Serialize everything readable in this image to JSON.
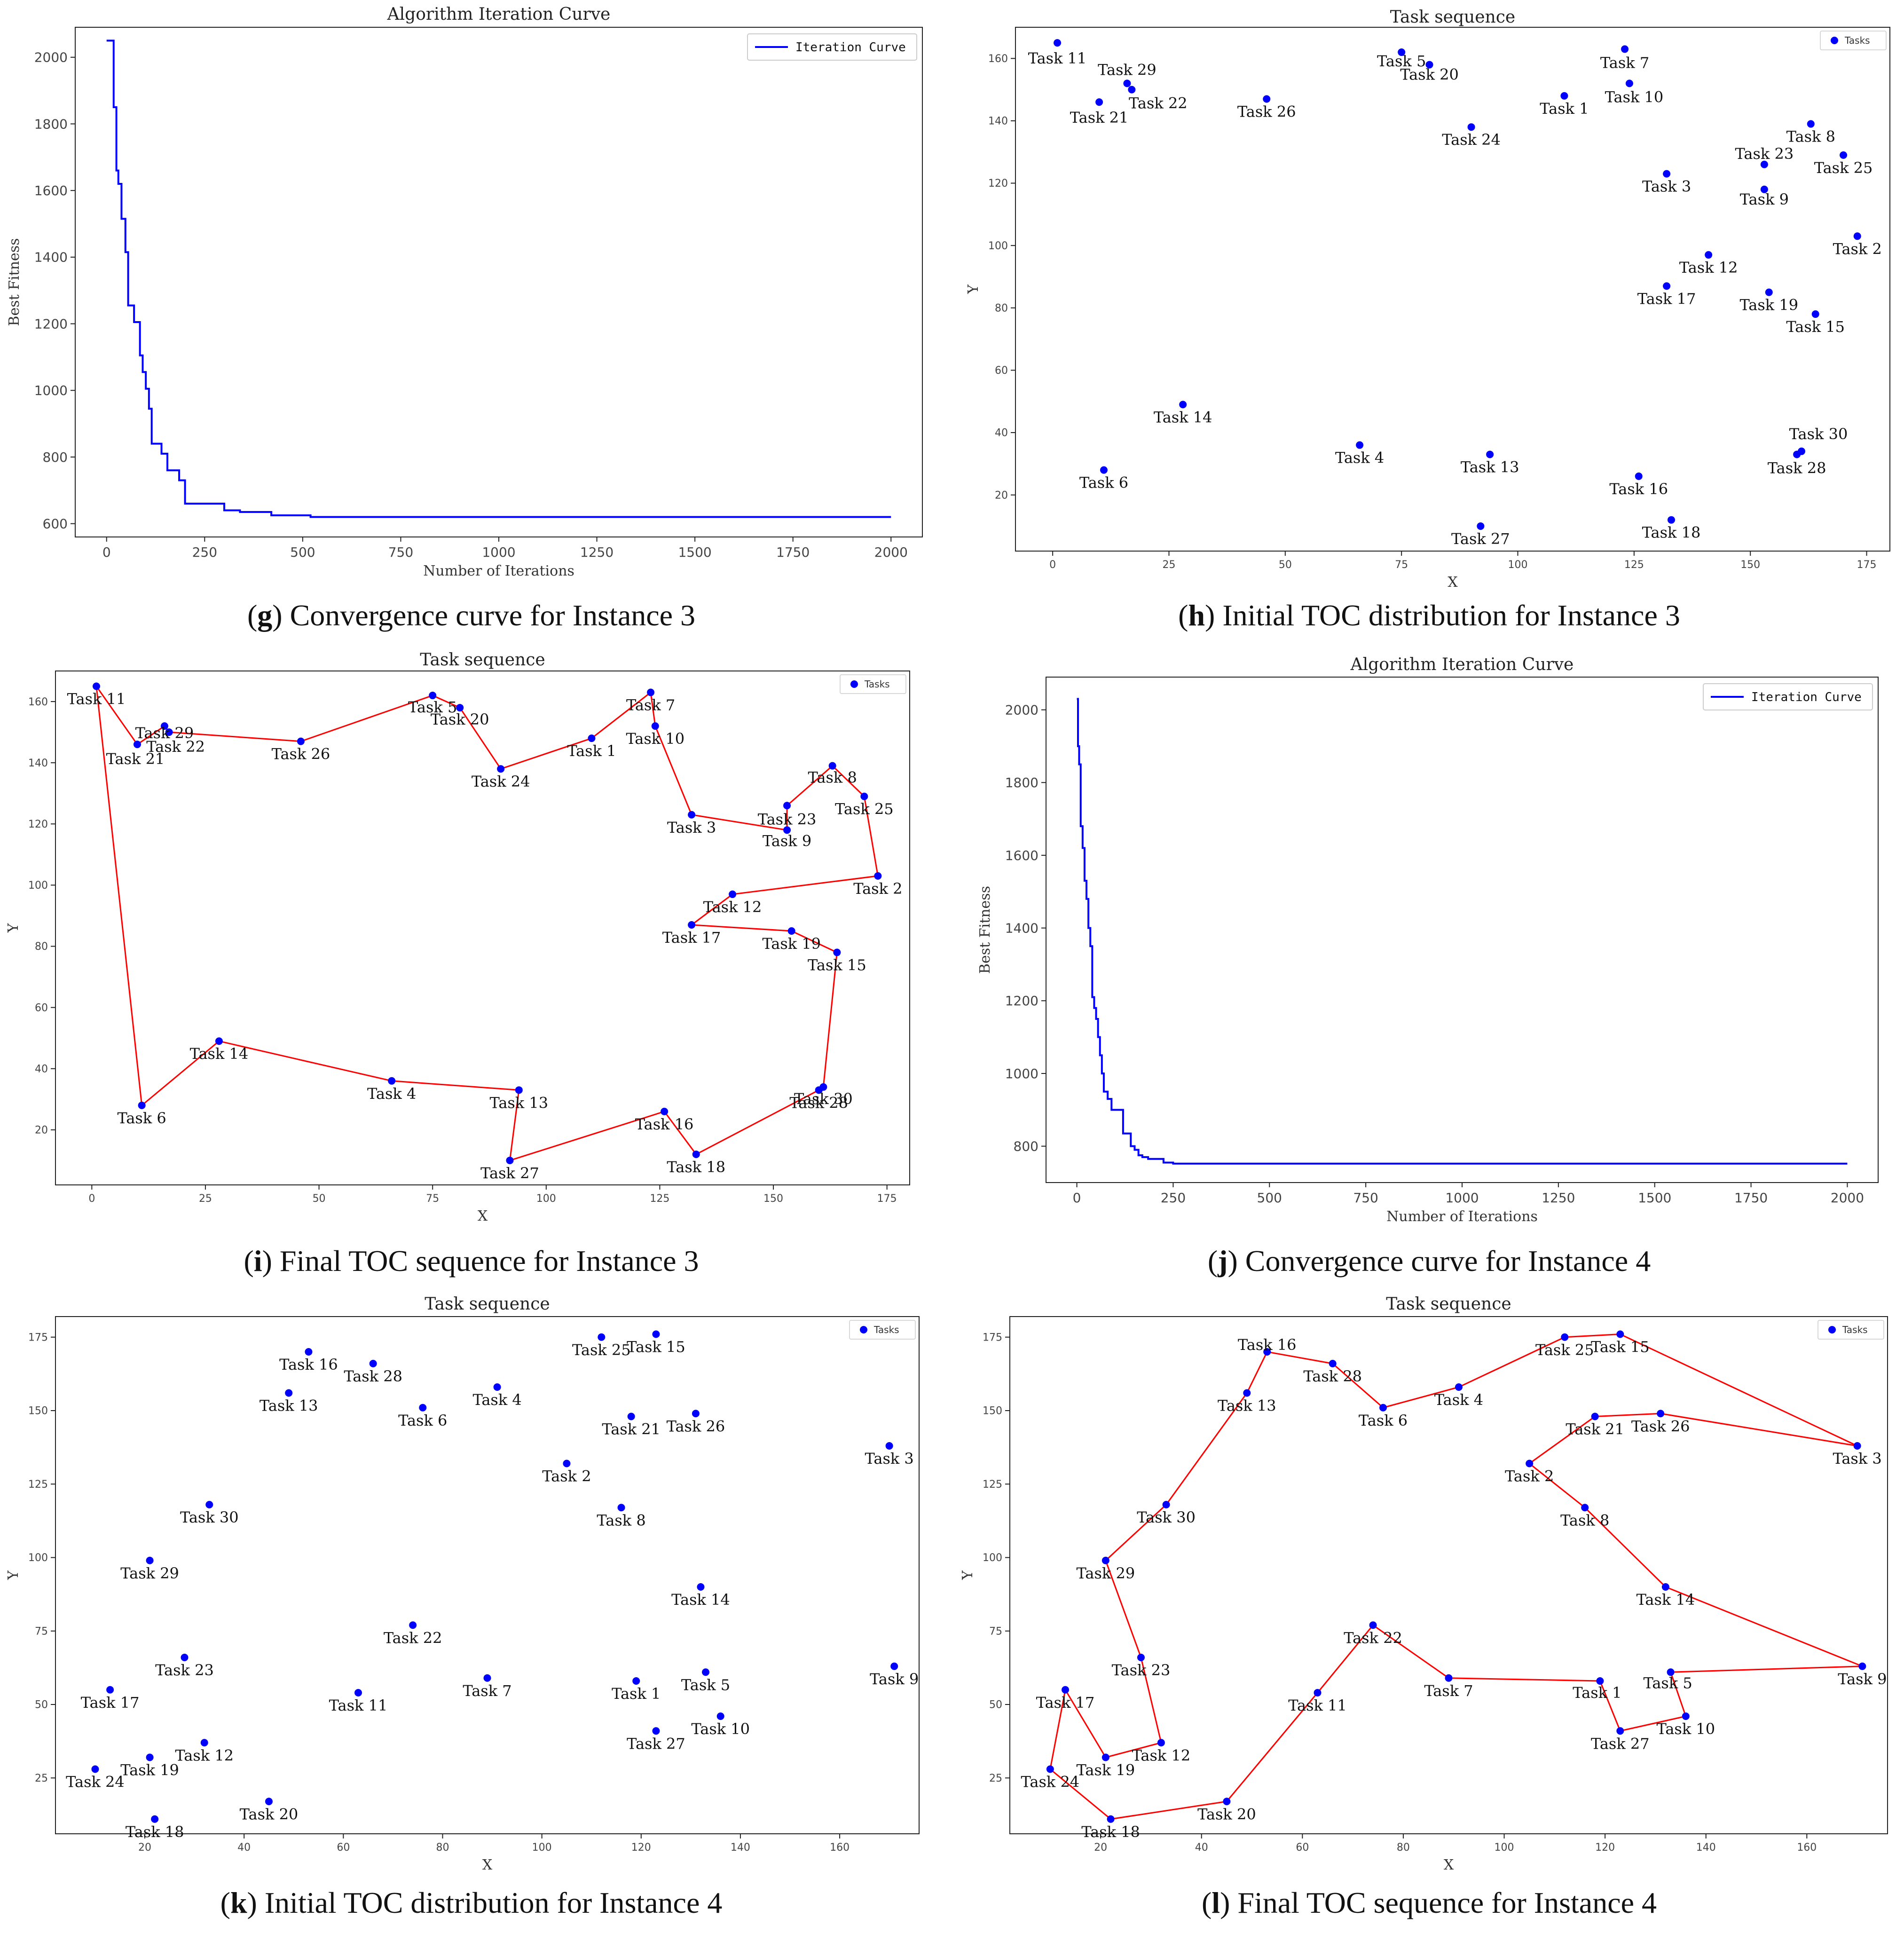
{
  "chart_data": [
    {
      "id": "g",
      "type": "line",
      "title": "Algorithm Iteration Curve",
      "xlabel": "Number of Iterations",
      "ylabel": "Best Fitness",
      "xlim": [
        -80,
        2080
      ],
      "ylim": [
        560,
        2090
      ],
      "xticks": [
        0,
        250,
        500,
        750,
        1000,
        1250,
        1500,
        1750,
        2000
      ],
      "yticks": [
        600,
        800,
        1000,
        1200,
        1400,
        1600,
        1800,
        2000
      ],
      "legend": "Iteration Curve",
      "legend_position": "top-right",
      "color": "#0000ff",
      "x": [
        0,
        15,
        18,
        22,
        25,
        30,
        38,
        42,
        48,
        55,
        60,
        70,
        78,
        85,
        92,
        100,
        108,
        115,
        125,
        140,
        155,
        170,
        185,
        200,
        300,
        340,
        420,
        520,
        2000
      ],
      "y": [
        2050,
        2050,
        1850,
        1850,
        1660,
        1620,
        1515,
        1515,
        1415,
        1255,
        1255,
        1205,
        1205,
        1105,
        1055,
        1005,
        945,
        840,
        840,
        810,
        760,
        760,
        730,
        660,
        640,
        635,
        625,
        620,
        620
      ]
    },
    {
      "id": "h",
      "type": "scatter",
      "title": "Task sequence",
      "xlabel": "X",
      "ylabel": "Y",
      "xlim": [
        -8,
        180
      ],
      "ylim": [
        2,
        170
      ],
      "xticks": [
        0,
        25,
        50,
        75,
        100,
        125,
        150,
        175
      ],
      "yticks": [
        20,
        40,
        60,
        80,
        100,
        120,
        140,
        160
      ],
      "legend": "Tasks",
      "legend_position": "top-right",
      "color": "#0000ff",
      "points": [
        {
          "label": "Task 1",
          "x": 110,
          "y": 148
        },
        {
          "label": "Task 2",
          "x": 173,
          "y": 103
        },
        {
          "label": "Task 3",
          "x": 132,
          "y": 123
        },
        {
          "label": "Task 4",
          "x": 66,
          "y": 36
        },
        {
          "label": "Task 5",
          "x": 75,
          "y": 162
        },
        {
          "label": "Task 6",
          "x": 11,
          "y": 28
        },
        {
          "label": "Task 7",
          "x": 123,
          "y": 163
        },
        {
          "label": "Task 8",
          "x": 163,
          "y": 139
        },
        {
          "label": "Task 9",
          "x": 153,
          "y": 118
        },
        {
          "label": "Task 10",
          "x": 124,
          "y": 152
        },
        {
          "label": "Task 11",
          "x": 1,
          "y": 165
        },
        {
          "label": "Task 12",
          "x": 141,
          "y": 97
        },
        {
          "label": "Task 13",
          "x": 94,
          "y": 33
        },
        {
          "label": "Task 14",
          "x": 28,
          "y": 49
        },
        {
          "label": "Task 15",
          "x": 164,
          "y": 78
        },
        {
          "label": "Task 16",
          "x": 126,
          "y": 26
        },
        {
          "label": "Task 17",
          "x": 132,
          "y": 87
        },
        {
          "label": "Task 18",
          "x": 133,
          "y": 12
        },
        {
          "label": "Task 19",
          "x": 154,
          "y": 85
        },
        {
          "label": "Task 20",
          "x": 81,
          "y": 158
        },
        {
          "label": "Task 21",
          "x": 10,
          "y": 146
        },
        {
          "label": "Task 22",
          "x": 17,
          "y": 150
        },
        {
          "label": "Task 23",
          "x": 153,
          "y": 126
        },
        {
          "label": "Task 24",
          "x": 90,
          "y": 138
        },
        {
          "label": "Task 25",
          "x": 170,
          "y": 129
        },
        {
          "label": "Task 26",
          "x": 46,
          "y": 147
        },
        {
          "label": "Task 27",
          "x": 92,
          "y": 10
        },
        {
          "label": "Task 28",
          "x": 160,
          "y": 33
        },
        {
          "label": "Task 29",
          "x": 16,
          "y": 152
        },
        {
          "label": "Task 30",
          "x": 161,
          "y": 34
        }
      ]
    },
    {
      "id": "i",
      "type": "line",
      "title": "Task sequence",
      "xlabel": "X",
      "ylabel": "Y",
      "xlim": [
        -8,
        180
      ],
      "ylim": [
        2,
        170
      ],
      "xticks": [
        0,
        25,
        50,
        75,
        100,
        125,
        150,
        175
      ],
      "yticks": [
        20,
        40,
        60,
        80,
        100,
        120,
        140,
        160
      ],
      "legend": "Tasks",
      "legend_position": "top-right",
      "color": "#0000ff",
      "route_color": "#ff0000",
      "points": [
        {
          "label": "Task 1",
          "x": 110,
          "y": 148
        },
        {
          "label": "Task 2",
          "x": 173,
          "y": 103
        },
        {
          "label": "Task 3",
          "x": 132,
          "y": 123
        },
        {
          "label": "Task 4",
          "x": 66,
          "y": 36
        },
        {
          "label": "Task 5",
          "x": 75,
          "y": 162
        },
        {
          "label": "Task 6",
          "x": 11,
          "y": 28
        },
        {
          "label": "Task 7",
          "x": 123,
          "y": 163
        },
        {
          "label": "Task 8",
          "x": 163,
          "y": 139
        },
        {
          "label": "Task 9",
          "x": 153,
          "y": 118
        },
        {
          "label": "Task 10",
          "x": 124,
          "y": 152
        },
        {
          "label": "Task 11",
          "x": 1,
          "y": 165
        },
        {
          "label": "Task 12",
          "x": 141,
          "y": 97
        },
        {
          "label": "Task 13",
          "x": 94,
          "y": 33
        },
        {
          "label": "Task 14",
          "x": 28,
          "y": 49
        },
        {
          "label": "Task 15",
          "x": 164,
          "y": 78
        },
        {
          "label": "Task 16",
          "x": 126,
          "y": 26
        },
        {
          "label": "Task 17",
          "x": 132,
          "y": 87
        },
        {
          "label": "Task 18",
          "x": 133,
          "y": 12
        },
        {
          "label": "Task 19",
          "x": 154,
          "y": 85
        },
        {
          "label": "Task 20",
          "x": 81,
          "y": 158
        },
        {
          "label": "Task 21",
          "x": 10,
          "y": 146
        },
        {
          "label": "Task 22",
          "x": 17,
          "y": 150
        },
        {
          "label": "Task 23",
          "x": 153,
          "y": 126
        },
        {
          "label": "Task 24",
          "x": 90,
          "y": 138
        },
        {
          "label": "Task 25",
          "x": 170,
          "y": 129
        },
        {
          "label": "Task 26",
          "x": 46,
          "y": 147
        },
        {
          "label": "Task 27",
          "x": 92,
          "y": 10
        },
        {
          "label": "Task 28",
          "x": 160,
          "y": 33
        },
        {
          "label": "Task 29",
          "x": 16,
          "y": 152
        },
        {
          "label": "Task 30",
          "x": 161,
          "y": 34
        }
      ],
      "route": [
        "Task 11",
        "Task 21",
        "Task 29",
        "Task 22",
        "Task 26",
        "Task 5",
        "Task 20",
        "Task 24",
        "Task 1",
        "Task 7",
        "Task 10",
        "Task 3",
        "Task 9",
        "Task 23",
        "Task 8",
        "Task 25",
        "Task 2",
        "Task 12",
        "Task 17",
        "Task 19",
        "Task 15",
        "Task 30",
        "Task 28",
        "Task 18",
        "Task 16",
        "Task 27",
        "Task 13",
        "Task 4",
        "Task 14",
        "Task 6",
        "Task 11"
      ]
    },
    {
      "id": "j",
      "type": "line",
      "title": "Algorithm Iteration Curve",
      "xlabel": "Number of Iterations",
      "ylabel": "Best Fitness",
      "xlim": [
        -80,
        2080
      ],
      "ylim": [
        700,
        2090
      ],
      "xticks": [
        0,
        250,
        500,
        750,
        1000,
        1250,
        1500,
        1750,
        2000
      ],
      "yticks": [
        800,
        1000,
        1200,
        1400,
        1600,
        1800,
        2000
      ],
      "legend": "Iteration Curve",
      "legend_position": "top-right",
      "color": "#0000ff",
      "x": [
        0,
        3,
        6,
        10,
        15,
        20,
        25,
        30,
        35,
        40,
        45,
        50,
        55,
        60,
        65,
        70,
        80,
        90,
        100,
        120,
        140,
        150,
        160,
        170,
        185,
        200,
        225,
        250,
        2000
      ],
      "y": [
        2030,
        1900,
        1850,
        1680,
        1620,
        1530,
        1480,
        1400,
        1350,
        1210,
        1180,
        1150,
        1100,
        1050,
        1000,
        950,
        930,
        900,
        900,
        835,
        800,
        790,
        775,
        770,
        765,
        765,
        755,
        752,
        752
      ]
    },
    {
      "id": "k",
      "type": "scatter",
      "title": "Task sequence",
      "xlabel": "X",
      "ylabel": "Y",
      "xlim": [
        2,
        176
      ],
      "ylim": [
        6,
        182
      ],
      "xticks": [
        20,
        40,
        60,
        80,
        100,
        120,
        140,
        160
      ],
      "yticks": [
        25,
        50,
        75,
        100,
        125,
        150,
        175
      ],
      "legend": "Tasks",
      "legend_position": "top-right",
      "color": "#0000ff",
      "points": [
        {
          "label": "Task 1",
          "x": 119,
          "y": 58
        },
        {
          "label": "Task 2",
          "x": 105,
          "y": 132
        },
        {
          "label": "Task 3",
          "x": 170,
          "y": 138
        },
        {
          "label": "Task 4",
          "x": 91,
          "y": 158
        },
        {
          "label": "Task 5",
          "x": 133,
          "y": 61
        },
        {
          "label": "Task 6",
          "x": 76,
          "y": 151
        },
        {
          "label": "Task 7",
          "x": 89,
          "y": 59
        },
        {
          "label": "Task 8",
          "x": 116,
          "y": 117
        },
        {
          "label": "Task 9",
          "x": 171,
          "y": 63
        },
        {
          "label": "Task 10",
          "x": 136,
          "y": 46
        },
        {
          "label": "Task 11",
          "x": 63,
          "y": 54
        },
        {
          "label": "Task 12",
          "x": 32,
          "y": 37
        },
        {
          "label": "Task 13",
          "x": 49,
          "y": 156
        },
        {
          "label": "Task 14",
          "x": 132,
          "y": 90
        },
        {
          "label": "Task 15",
          "x": 123,
          "y": 176
        },
        {
          "label": "Task 16",
          "x": 53,
          "y": 170
        },
        {
          "label": "Task 17",
          "x": 13,
          "y": 55
        },
        {
          "label": "Task 18",
          "x": 22,
          "y": 11
        },
        {
          "label": "Task 19",
          "x": 21,
          "y": 32
        },
        {
          "label": "Task 20",
          "x": 45,
          "y": 17
        },
        {
          "label": "Task 21",
          "x": 118,
          "y": 148
        },
        {
          "label": "Task 22",
          "x": 74,
          "y": 77
        },
        {
          "label": "Task 23",
          "x": 28,
          "y": 66
        },
        {
          "label": "Task 24",
          "x": 10,
          "y": 28
        },
        {
          "label": "Task 25",
          "x": 112,
          "y": 175
        },
        {
          "label": "Task 26",
          "x": 131,
          "y": 149
        },
        {
          "label": "Task 27",
          "x": 123,
          "y": 41
        },
        {
          "label": "Task 28",
          "x": 66,
          "y": 166
        },
        {
          "label": "Task 29",
          "x": 21,
          "y": 99
        },
        {
          "label": "Task 30",
          "x": 33,
          "y": 118
        }
      ]
    },
    {
      "id": "l",
      "type": "line",
      "title": "Task sequence",
      "xlabel": "X",
      "ylabel": "Y",
      "xlim": [
        2,
        176
      ],
      "ylim": [
        6,
        182
      ],
      "xticks": [
        20,
        40,
        60,
        80,
        100,
        120,
        140,
        160
      ],
      "yticks": [
        25,
        50,
        75,
        100,
        125,
        150,
        175
      ],
      "legend": "Tasks",
      "legend_position": "top-right",
      "color": "#0000ff",
      "route_color": "#ff0000",
      "points": [
        {
          "label": "Task 1",
          "x": 119,
          "y": 58
        },
        {
          "label": "Task 2",
          "x": 105,
          "y": 132
        },
        {
          "label": "Task 3",
          "x": 170,
          "y": 138
        },
        {
          "label": "Task 4",
          "x": 91,
          "y": 158
        },
        {
          "label": "Task 5",
          "x": 133,
          "y": 61
        },
        {
          "label": "Task 6",
          "x": 76,
          "y": 151
        },
        {
          "label": "Task 7",
          "x": 89,
          "y": 59
        },
        {
          "label": "Task 8",
          "x": 116,
          "y": 117
        },
        {
          "label": "Task 9",
          "x": 171,
          "y": 63
        },
        {
          "label": "Task 10",
          "x": 136,
          "y": 46
        },
        {
          "label": "Task 11",
          "x": 63,
          "y": 54
        },
        {
          "label": "Task 12",
          "x": 32,
          "y": 37
        },
        {
          "label": "Task 13",
          "x": 49,
          "y": 156
        },
        {
          "label": "Task 14",
          "x": 132,
          "y": 90
        },
        {
          "label": "Task 15",
          "x": 123,
          "y": 176
        },
        {
          "label": "Task 16",
          "x": 53,
          "y": 170
        },
        {
          "label": "Task 17",
          "x": 13,
          "y": 55
        },
        {
          "label": "Task 18",
          "x": 22,
          "y": 11
        },
        {
          "label": "Task 19",
          "x": 21,
          "y": 32
        },
        {
          "label": "Task 20",
          "x": 45,
          "y": 17
        },
        {
          "label": "Task 21",
          "x": 118,
          "y": 148
        },
        {
          "label": "Task 22",
          "x": 74,
          "y": 77
        },
        {
          "label": "Task 23",
          "x": 28,
          "y": 66
        },
        {
          "label": "Task 24",
          "x": 10,
          "y": 28
        },
        {
          "label": "Task 25",
          "x": 112,
          "y": 175
        },
        {
          "label": "Task 26",
          "x": 131,
          "y": 149
        },
        {
          "label": "Task 27",
          "x": 123,
          "y": 41
        },
        {
          "label": "Task 28",
          "x": 66,
          "y": 166
        },
        {
          "label": "Task 29",
          "x": 21,
          "y": 99
        },
        {
          "label": "Task 30",
          "x": 33,
          "y": 118
        }
      ],
      "route": [
        "Task 3",
        "Task 15",
        "Task 25",
        "Task 4",
        "Task 6",
        "Task 28",
        "Task 16",
        "Task 13",
        "Task 30",
        "Task 29",
        "Task 23",
        "Task 12",
        "Task 19",
        "Task 17",
        "Task 24",
        "Task 18",
        "Task 20",
        "Task 11",
        "Task 22",
        "Task 7",
        "Task 1",
        "Task 27",
        "Task 10",
        "Task 5",
        "Task 9",
        "Task 14",
        "Task 8",
        "Task 2",
        "Task 21",
        "Task 26",
        "Task 3"
      ]
    }
  ],
  "captions": [
    {
      "letter": "g",
      "text": " Convergence curve for Instance 3"
    },
    {
      "letter": "h",
      "text": " Initial TOC distribution for Instance 3"
    },
    {
      "letter": "i",
      "text": " Final TOC sequence for Instance 3"
    },
    {
      "letter": "j",
      "text": " Convergence curve for Instance 4"
    },
    {
      "letter": "k",
      "text": " Initial TOC distribution for Instance 4"
    },
    {
      "letter": "l",
      "text": " Final TOC sequence for Instance 4"
    }
  ]
}
